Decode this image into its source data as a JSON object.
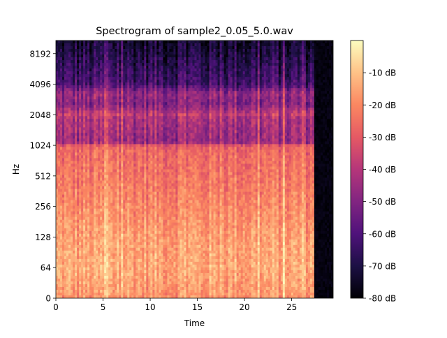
{
  "chart_data": {
    "type": "heatmap",
    "title": "Spectrogram of sample2_0.05_5.0.wav",
    "xlabel": "Time",
    "ylabel": "Hz",
    "xlim": [
      0,
      29.4
    ],
    "x_ticks": [
      {
        "value": 0,
        "label": "0"
      },
      {
        "value": 5,
        "label": "5"
      },
      {
        "value": 10,
        "label": "10"
      },
      {
        "value": 15,
        "label": "15"
      },
      {
        "value": 20,
        "label": "20"
      },
      {
        "value": 25,
        "label": "25"
      }
    ],
    "y_scale": "symlog",
    "ylim": [
      0,
      11025
    ],
    "y_ticks": [
      {
        "value": 0,
        "label": "0"
      },
      {
        "value": 64,
        "label": "64"
      },
      {
        "value": 128,
        "label": "128"
      },
      {
        "value": 256,
        "label": "256"
      },
      {
        "value": 512,
        "label": "512"
      },
      {
        "value": 1024,
        "label": "1024"
      },
      {
        "value": 2048,
        "label": "2048"
      },
      {
        "value": 4096,
        "label": "4096"
      },
      {
        "value": 8192,
        "label": "8192"
      }
    ],
    "signal_end_time": 27.5,
    "colormap": "magma",
    "colormap_stops": [
      "#000004",
      "#1c1044",
      "#4f127b",
      "#812581",
      "#b5367a",
      "#e55964",
      "#fb8761",
      "#fec287",
      "#fcfdbf"
    ],
    "colorbar": {
      "range": [
        -80,
        0
      ],
      "ticks": [
        {
          "value": -10,
          "label": "-10 dB"
        },
        {
          "value": -20,
          "label": "-20 dB"
        },
        {
          "value": -30,
          "label": "-30 dB"
        },
        {
          "value": -40,
          "label": "-40 dB"
        },
        {
          "value": -50,
          "label": "-50 dB"
        },
        {
          "value": -60,
          "label": "-60 dB"
        },
        {
          "value": -70,
          "label": "-70 dB"
        },
        {
          "value": -80,
          "label": "-80 dB"
        }
      ]
    },
    "intensity_profile_db": [
      {
        "hz": 0,
        "db": -18
      },
      {
        "hz": 64,
        "db": -14
      },
      {
        "hz": 128,
        "db": -16
      },
      {
        "hz": 256,
        "db": -20
      },
      {
        "hz": 512,
        "db": -24
      },
      {
        "hz": 1000,
        "db": -27
      },
      {
        "hz": 1100,
        "db": -46
      },
      {
        "hz": 1900,
        "db": -42
      },
      {
        "hz": 2048,
        "db": -38
      },
      {
        "hz": 2600,
        "db": -50
      },
      {
        "hz": 3300,
        "db": -46
      },
      {
        "hz": 4096,
        "db": -62
      },
      {
        "hz": 8192,
        "db": -70
      },
      {
        "hz": 11025,
        "db": -74
      }
    ]
  }
}
